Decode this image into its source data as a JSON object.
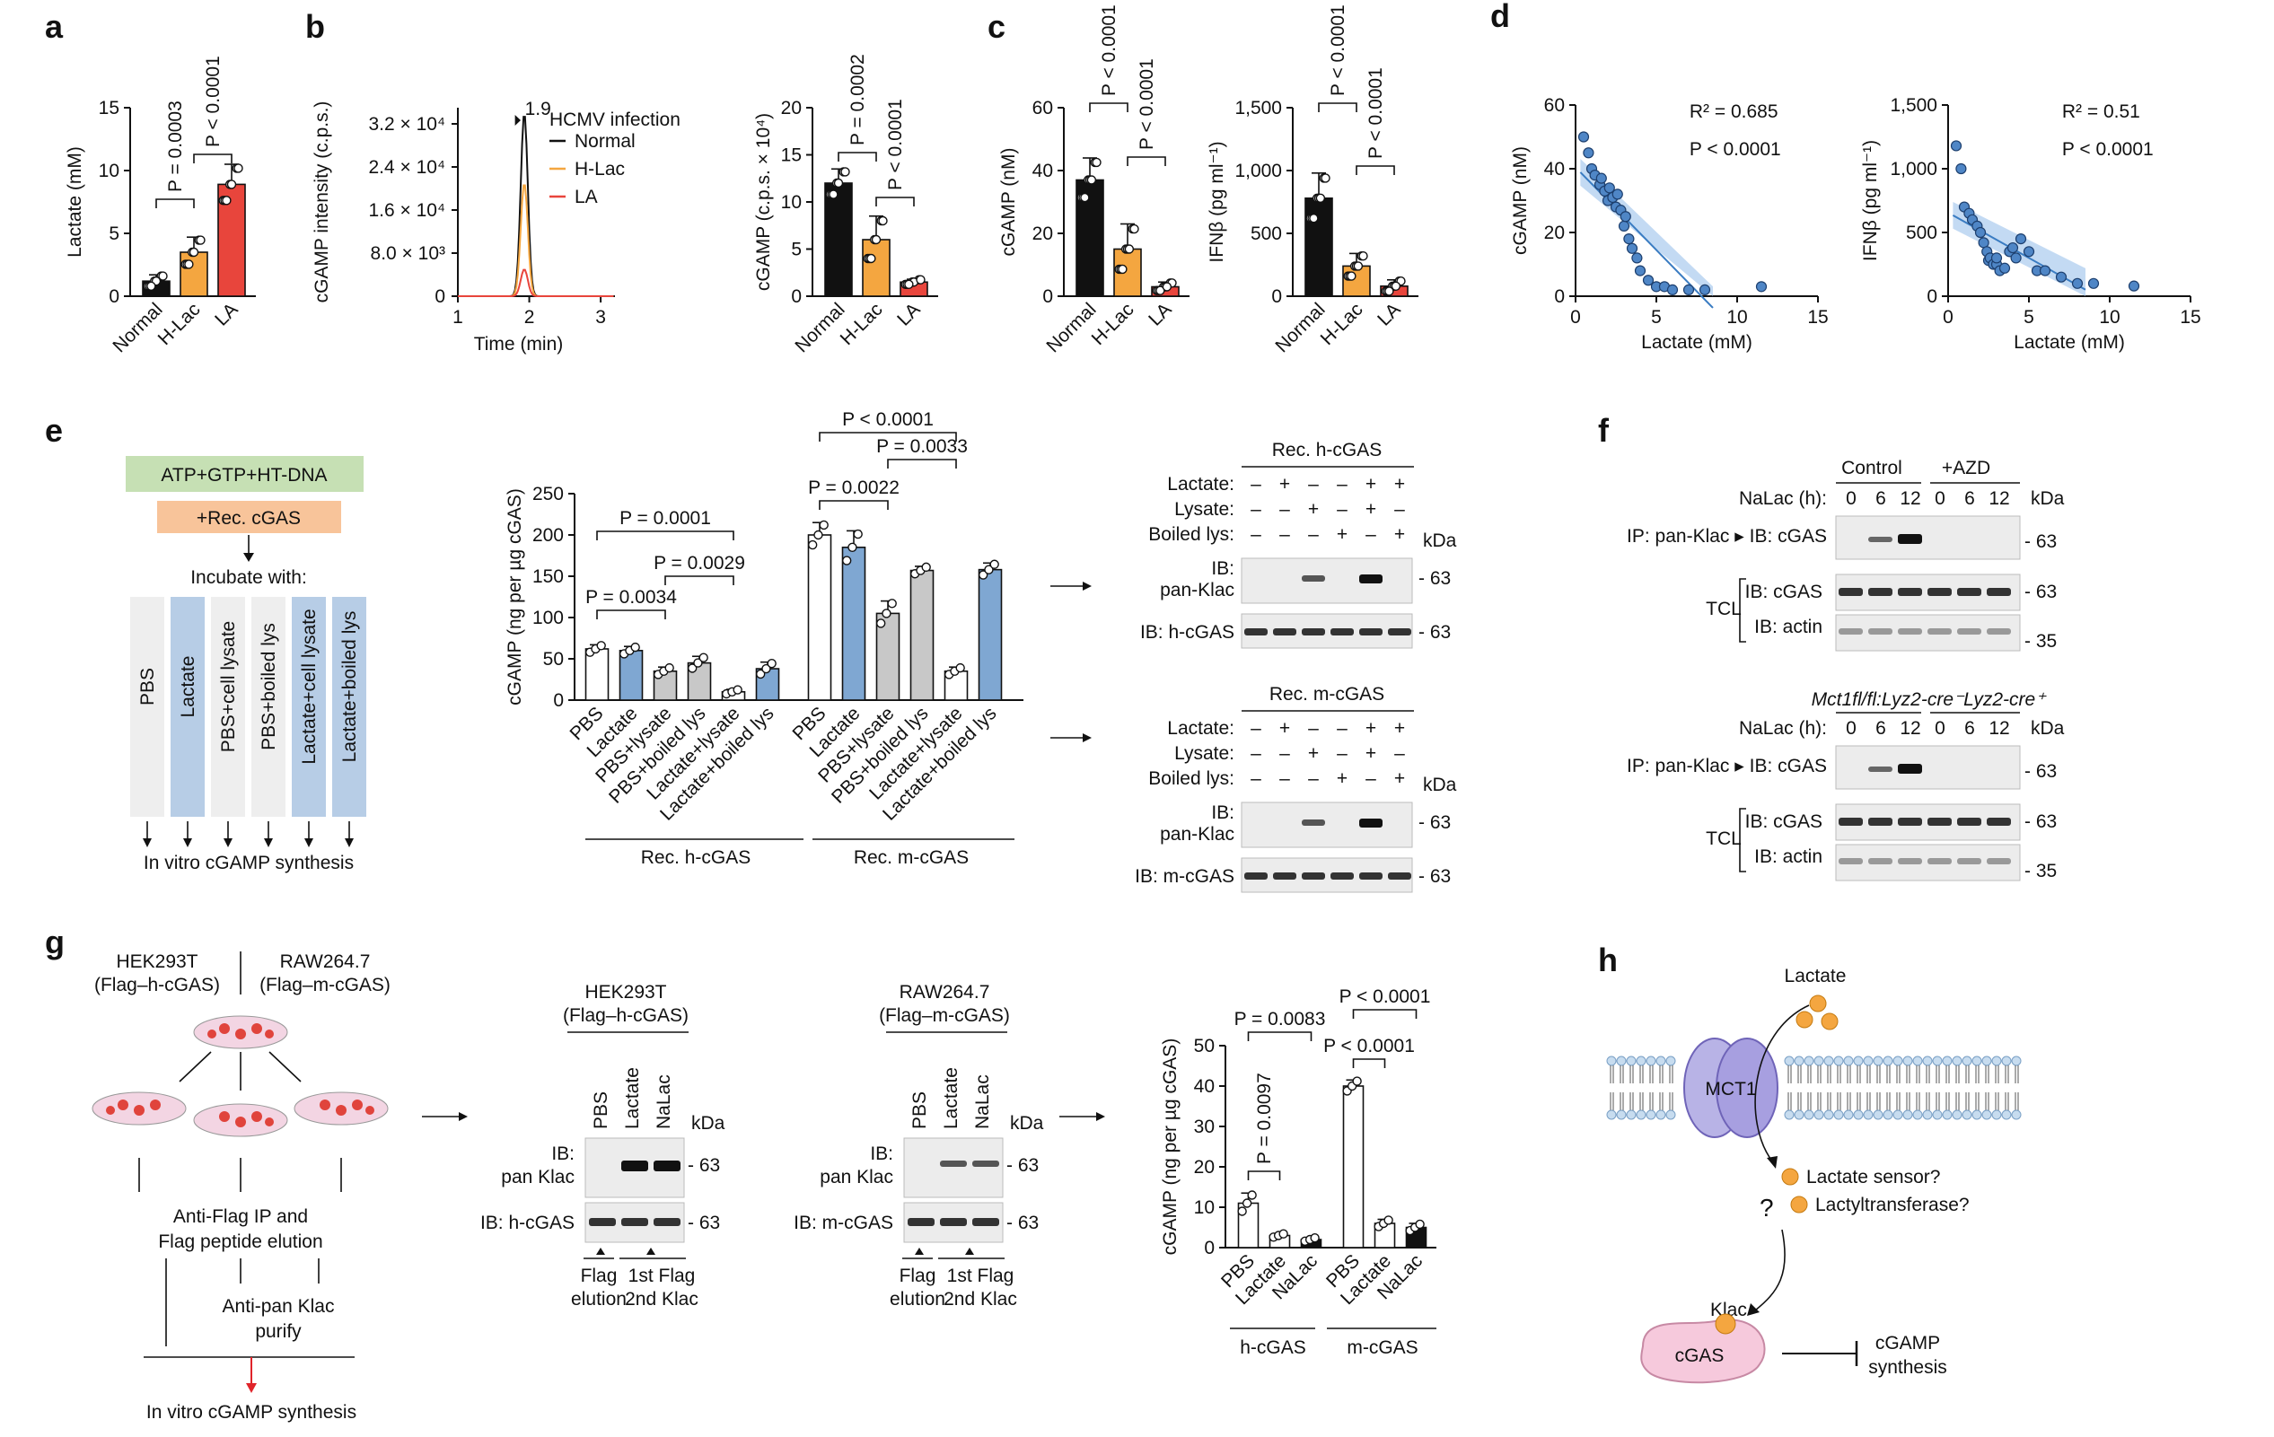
{
  "panels": {
    "a": "a",
    "b": "b",
    "c": "c",
    "d": "d",
    "e": "e",
    "f": "f",
    "g": "g",
    "h": "h"
  },
  "colors": {
    "normal": "#111111",
    "hlac": "#f4a640",
    "la": "#e8453c",
    "blue": "#7fa7d2",
    "gray": "#c8c8c8",
    "white": "#ffffff",
    "reg_fill": "#a9cbee",
    "reg_line": "#3a7cc2",
    "point": "#4f86c6"
  },
  "conditions": [
    "Normal",
    "H-Lac",
    "LA"
  ],
  "chart_data": [
    {
      "id": "a",
      "type": "bar",
      "ylabel": "Lactate (mM)",
      "ylim": [
        0,
        15
      ],
      "yticks": [
        0,
        5,
        10,
        15
      ],
      "categories": [
        "Normal",
        "H-Lac",
        "LA"
      ],
      "values": [
        1.2,
        3.5,
        8.9
      ],
      "errors": [
        0.5,
        1.2,
        1.6
      ],
      "annotations": [
        {
          "text": "P = 0.0003",
          "between": [
            "Normal",
            "H-Lac"
          ]
        },
        {
          "text": "P < 0.0001",
          "between": [
            "H-Lac",
            "LA"
          ]
        }
      ]
    },
    {
      "id": "b1",
      "type": "line",
      "title": "HCMV infection",
      "ylabel": "cGAMP intensity (c.p.s.)",
      "xlabel": "Time (min)",
      "xticks": [
        "1",
        "2",
        "3"
      ],
      "ytick_labels": [
        "0",
        "8.0 × 10³",
        "1.6 × 10⁴",
        "2.4 × 10⁴",
        "3.2 × 10⁴"
      ],
      "peak_label": "1.9",
      "series": [
        {
          "name": "Normal",
          "peak": 34000
        },
        {
          "name": "H-Lac",
          "peak": 21000
        },
        {
          "name": "LA",
          "peak": 5000
        }
      ]
    },
    {
      "id": "b2",
      "type": "bar",
      "ylabel": "cGAMP (c.p.s. × 10⁴)",
      "ylim": [
        0,
        20
      ],
      "yticks": [
        0,
        5,
        10,
        15,
        20
      ],
      "categories": [
        "Normal",
        "H-Lac",
        "LA"
      ],
      "values": [
        12,
        6,
        1.5
      ],
      "errors": [
        1.5,
        2.5,
        0.3
      ],
      "annotations": [
        {
          "text": "P = 0.0002"
        },
        {
          "text": "P < 0.0001"
        }
      ]
    },
    {
      "id": "c1",
      "type": "bar",
      "ylabel": "cGAMP (nM)",
      "ylim": [
        0,
        60
      ],
      "yticks": [
        0,
        20,
        40,
        60
      ],
      "categories": [
        "Normal",
        "H-Lac",
        "LA"
      ],
      "values": [
        37,
        15,
        3
      ],
      "errors": [
        7,
        8,
        1.5
      ],
      "annotations": [
        {
          "text": "P < 0.0001"
        },
        {
          "text": "P < 0.0001"
        }
      ]
    },
    {
      "id": "c2",
      "type": "bar",
      "ylabel": "IFNβ (pg ml⁻¹)",
      "ylim": [
        0,
        1500
      ],
      "ytick_labels": [
        "0",
        "500",
        "1,000",
        "1,500"
      ],
      "categories": [
        "Normal",
        "H-Lac",
        "LA"
      ],
      "values": [
        780,
        240,
        80
      ],
      "errors": [
        200,
        100,
        50
      ],
      "annotations": [
        {
          "text": "P < 0.0001"
        },
        {
          "text": "P < 0.0001"
        }
      ]
    },
    {
      "id": "d1",
      "type": "scatter",
      "ylabel": "cGAMP (nM)",
      "xlabel": "Lactate (mM)",
      "xlim": [
        0,
        15
      ],
      "ylim": [
        0,
        60
      ],
      "xticks": [
        0,
        5,
        10,
        15
      ],
      "yticks": [
        0,
        20,
        40,
        60
      ],
      "r2": "0.685",
      "p": "P < 0.0001",
      "x": [
        0.5,
        0.8,
        1.0,
        1.2,
        1.5,
        1.6,
        1.8,
        2.0,
        2.1,
        2.3,
        2.5,
        2.6,
        2.8,
        3.0,
        3.1,
        3.3,
        3.5,
        3.8,
        4.0,
        4.5,
        5.0,
        5.5,
        6.0,
        7.0,
        8.0,
        11.5
      ],
      "y": [
        50,
        45,
        40,
        38,
        35,
        37,
        33,
        30,
        34,
        31,
        28,
        32,
        27,
        22,
        25,
        18,
        15,
        12,
        8,
        5,
        3,
        3,
        2,
        2,
        2,
        3
      ]
    },
    {
      "id": "d2",
      "type": "scatter",
      "ylabel": "IFNβ (pg ml⁻¹)",
      "xlabel": "Lactate (mM)",
      "xlim": [
        0,
        15
      ],
      "ylim": [
        0,
        1500
      ],
      "xticks": [
        0,
        5,
        10,
        15
      ],
      "ytick_labels": [
        "0",
        "500",
        "1,000",
        "1,500"
      ],
      "r2": "0.51",
      "p": "P < 0.0001",
      "x": [
        0.5,
        0.8,
        1.0,
        1.3,
        1.5,
        1.8,
        2.0,
        2.2,
        2.4,
        2.5,
        2.6,
        2.8,
        3.0,
        3.0,
        3.2,
        3.5,
        3.8,
        4.0,
        4.2,
        4.5,
        5.0,
        5.5,
        6.0,
        7.0,
        8.0,
        9.0,
        11.5
      ],
      "y": [
        1180,
        1000,
        700,
        650,
        600,
        550,
        500,
        420,
        350,
        280,
        300,
        250,
        250,
        300,
        200,
        220,
        350,
        380,
        300,
        450,
        350,
        200,
        200,
        150,
        100,
        100,
        80
      ]
    },
    {
      "id": "e",
      "type": "bar",
      "ylabel": "cGAMP (ng per µg cGAS)",
      "ylim": [
        0,
        250
      ],
      "yticks": [
        0,
        50,
        100,
        150,
        200,
        250
      ],
      "categories": [
        "PBS",
        "Lactate",
        "PBS+lysate",
        "PBS+boiled lys",
        "Lactate+lysate",
        "Lactate+boiled lys",
        "PBS",
        "Lactate",
        "PBS+lysate",
        "PBS+boiled lys",
        "Lactate+lysate",
        "Lactate+boiled lys"
      ],
      "groups": [
        "Rec. h-cGAS",
        "Rec. m-cGAS"
      ],
      "values": [
        62,
        60,
        35,
        45,
        10,
        38,
        200,
        185,
        105,
        157,
        35,
        158
      ],
      "errors": [
        5,
        5,
        5,
        8,
        3,
        8,
        15,
        20,
        15,
        5,
        5,
        8
      ],
      "annotations": [
        "P = 0.0034",
        "P = 0.0001",
        "P = 0.0029",
        "P = 0.0022",
        "P = 0.0033",
        "P < 0.0001"
      ]
    },
    {
      "id": "g",
      "type": "bar",
      "ylabel": "cGAMP (ng per µg cGAS)",
      "ylim": [
        0,
        50
      ],
      "yticks": [
        0,
        10,
        20,
        30,
        40,
        50
      ],
      "categories": [
        "PBS",
        "Lactate",
        "NaLac",
        "PBS",
        "Lactate",
        "NaLac"
      ],
      "groups": [
        "h-cGAS",
        "m-cGAS"
      ],
      "values": [
        11,
        3,
        2,
        40,
        6,
        5
      ],
      "errors": [
        2.5,
        0.5,
        0.5,
        1.5,
        1,
        1
      ],
      "annotations": [
        "P = 0.0097",
        "P = 0.0083",
        "P < 0.0001",
        "P < 0.0001"
      ]
    }
  ],
  "e_schema": {
    "mix": "ATP+GTP+HT-DNA",
    "enzyme": "+Rec. cGAS",
    "incubate": "Incubate with:",
    "columns": [
      "PBS",
      "Lactate",
      "PBS+cell lysate",
      "PBS+boiled lys",
      "Lactate+cell lysate",
      "Lactate+boiled lys"
    ],
    "result": "In vitro cGAMP synthesis"
  },
  "e_blots": [
    {
      "title": "Rec. h-cGAS",
      "rows": [
        "Lactate:",
        "Lysate:",
        "Boiled lys:"
      ],
      "signs": [
        [
          "–",
          "+",
          "–",
          "–",
          "+",
          "+"
        ],
        [
          "–",
          "–",
          "+",
          "–",
          "+",
          "–"
        ],
        [
          "–",
          "–",
          "–",
          "+",
          "–",
          "+"
        ]
      ],
      "kda": "kDa",
      "ib1": "IB:",
      "ib1b": "pan-Klac",
      "ib2": "IB: h-cGAS",
      "mw": "- 63"
    },
    {
      "title": "Rec. m-cGAS",
      "rows": [
        "Lactate:",
        "Lysate:",
        "Boiled lys:"
      ],
      "signs": [
        [
          "–",
          "+",
          "–",
          "–",
          "+",
          "+"
        ],
        [
          "–",
          "–",
          "+",
          "–",
          "+",
          "–"
        ],
        [
          "–",
          "–",
          "–",
          "+",
          "–",
          "+"
        ]
      ],
      "kda": "kDa",
      "ib1": "IB:",
      "ib1b": "pan-Klac",
      "ib2": "IB: m-cGAS",
      "mw": "- 63"
    }
  ],
  "f_blots": [
    {
      "groups": [
        "Control",
        "+AZD"
      ],
      "nalac": "NaLac (h):",
      "times": [
        "0",
        "6",
        "12",
        "0",
        "6",
        "12"
      ],
      "kda": "kDa",
      "ip": "IP: pan-Klac ▸ IB: cGAS",
      "tcl": "TCL",
      "ib_cgas": "IB: cGAS",
      "ib_actin": "IB: actin",
      "mw63": "- 63",
      "mw35": "- 35"
    },
    {
      "groups": [
        "Mct1fl/fl:Lyz2-cre⁻",
        "Lyz2-cre⁺"
      ],
      "nalac": "NaLac (h):",
      "times": [
        "0",
        "6",
        "12",
        "0",
        "6",
        "12"
      ],
      "kda": "kDa",
      "ip": "IP: pan-Klac ▸ IB: cGAS",
      "tcl": "TCL",
      "ib_cgas": "IB: cGAS",
      "ib_actin": "IB: actin",
      "mw63": "- 63",
      "mw35": "- 35"
    }
  ],
  "g_schema": {
    "cell1": "HEK293T",
    "cell1b": "(Flag–h-cGAS)",
    "cell2": "RAW264.7",
    "cell2b": "(Flag–m-cGAS)",
    "step1": "Anti-Flag IP and",
    "step1b": "Flag peptide elution",
    "step2": "Anti-pan Klac",
    "step2b": "purify",
    "result": "In vitro cGAMP synthesis"
  },
  "g_blots": [
    {
      "title": "HEK293T",
      "subtitle": "(Flag–h-cGAS)",
      "lanes": [
        "PBS",
        "Lactate",
        "NaLac"
      ],
      "kda": "kDa",
      "ib1": "IB:",
      "ib1b": "pan Klac",
      "ib2": "IB: h-cGAS",
      "mw": "- 63",
      "foot1": "Flag",
      "foot1b": "elution",
      "foot2": "1st Flag",
      "foot2b": "2nd Klac"
    },
    {
      "title": "RAW264.7",
      "subtitle": "(Flag–m-cGAS)",
      "lanes": [
        "PBS",
        "Lactate",
        "NaLac"
      ],
      "kda": "kDa",
      "ib1": "IB:",
      "ib1b": "pan Klac",
      "ib2": "IB: m-cGAS",
      "mw": "- 63",
      "foot1": "Flag",
      "foot1b": "elution",
      "foot2": "1st Flag",
      "foot2b": "2nd Klac"
    }
  ],
  "h_model": {
    "lactate": "Lactate",
    "transporter": "MCT1",
    "q": "?",
    "sensor": "Lactate sensor?",
    "transferase": "Lactyltransferase?",
    "klac": "Klac",
    "cgas": "cGAS",
    "out1": "cGAMP",
    "out2": "synthesis"
  }
}
